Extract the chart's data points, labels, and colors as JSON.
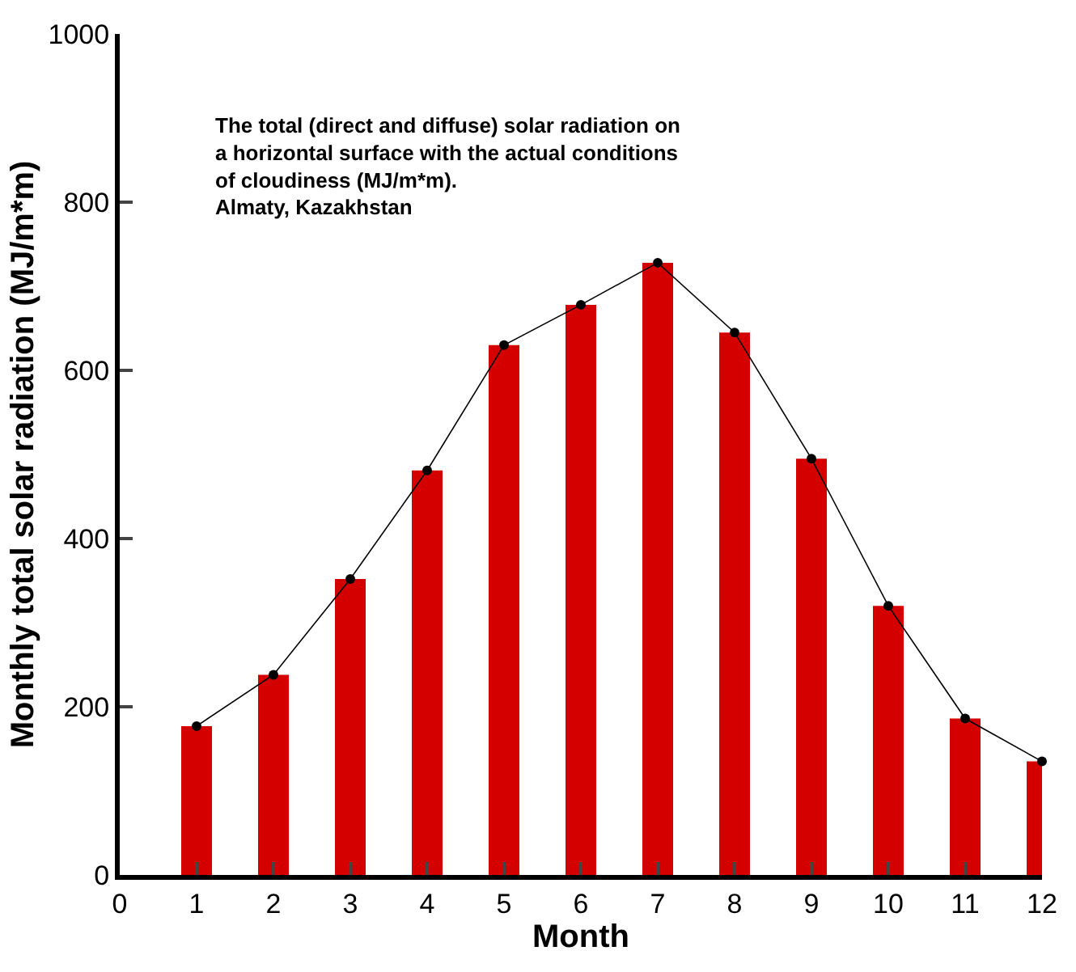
{
  "chart_data": {
    "type": "bar",
    "x": [
      1,
      2,
      3,
      4,
      5,
      6,
      7,
      8,
      9,
      10,
      11,
      12
    ],
    "series": [
      {
        "color": "#d40000",
        "values": [
          177,
          238,
          352,
          481,
          630,
          678,
          728,
          645,
          495,
          320,
          186,
          135
        ]
      },
      {
        "type": "line",
        "color": "#000000",
        "marker": "circle",
        "line_style": "solid",
        "values": [
          177,
          238,
          352,
          481,
          630,
          678,
          728,
          645,
          495,
          320,
          186,
          135
        ]
      }
    ],
    "xlabel": "Month",
    "ylabel": "Monthly total solar radiation (MJ/m*m)",
    "xlim": [
      0,
      12
    ],
    "xticks": [
      0,
      1,
      2,
      3,
      4,
      5,
      6,
      7,
      8,
      9,
      10,
      11,
      12
    ],
    "ylim": [
      0,
      1000
    ],
    "yticks": [
      0,
      200,
      400,
      600,
      800,
      1000
    ],
    "annotations": [
      "The total (direct and diffuse) solar radiation on\na horizontal surface with the actual conditions\nof cloudiness (MJ/m*m).\nAlmaty, Kazakhstan"
    ]
  }
}
